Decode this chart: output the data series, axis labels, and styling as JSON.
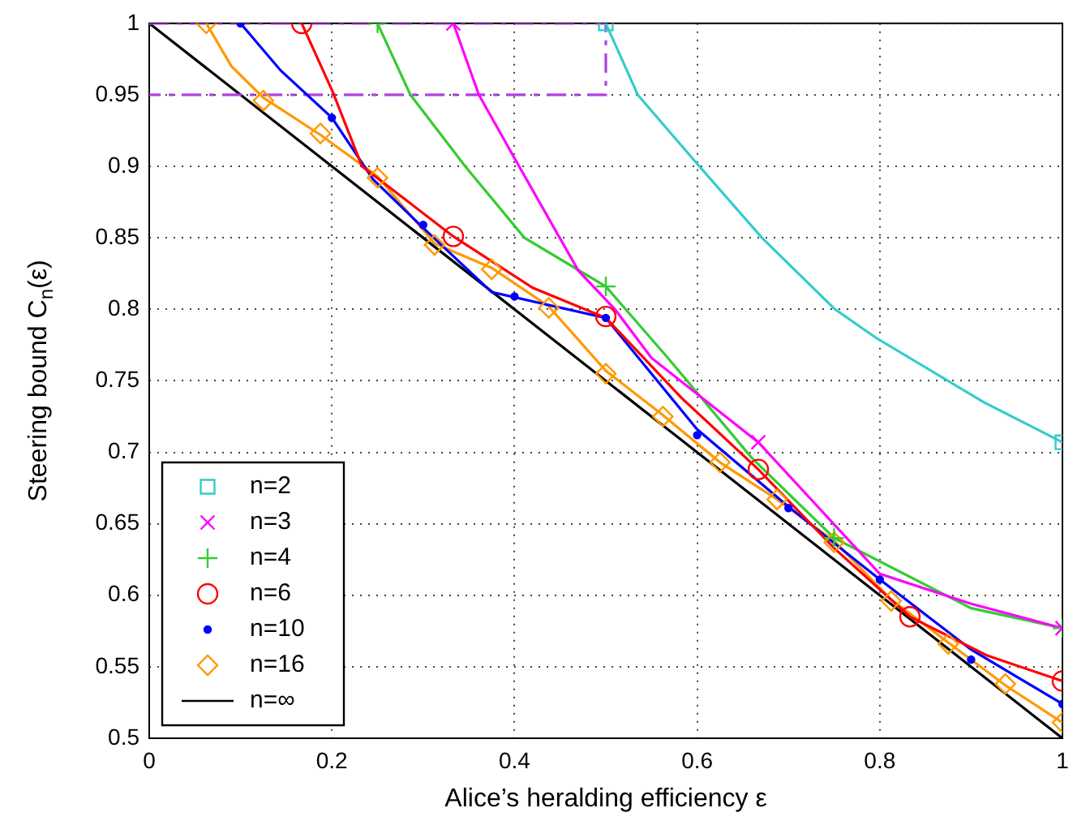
{
  "chart_data": {
    "type": "line",
    "xlabel": "Alice’s heralding efficiency ε",
    "ylabel": "Steering bound C$_{n}$(ε)",
    "xlim": [
      0,
      1
    ],
    "ylim": [
      0.5,
      1
    ],
    "xticks": [
      0,
      0.2,
      0.4,
      0.6,
      0.8,
      1
    ],
    "yticks": [
      0.5,
      0.55,
      0.6,
      0.65,
      0.7,
      0.75,
      0.8,
      0.85,
      0.9,
      0.95,
      1
    ],
    "grid": true,
    "legend": "bottom left",
    "line_style": "solid",
    "series": [
      {
        "type": "line",
        "color": "#33cccc",
        "marker": "none",
        "x": [
          0.5,
          0.535,
          0.597,
          0.671,
          0.751,
          0.796,
          0.914,
          1
        ],
        "values": [
          1,
          0.95,
          0.904,
          0.85,
          0.8,
          0.78,
          0.735,
          0.707
        ]
      },
      {
        "type": "line",
        "color": "#ff00ff",
        "marker": "none",
        "x": [
          0.333,
          0.361,
          0.405,
          0.47,
          0.51,
          0.55,
          0.667,
          0.8,
          0.9,
          1
        ],
        "values": [
          1,
          0.95,
          0.9,
          0.827,
          0.8,
          0.766,
          0.707,
          0.615,
          0.594,
          0.577
        ]
      },
      {
        "type": "line",
        "color": "#33cc33",
        "marker": "none",
        "x": [
          0.25,
          0.286,
          0.346,
          0.411,
          0.5,
          0.568,
          0.66,
          0.75,
          0.9,
          1
        ],
        "values": [
          1,
          0.95,
          0.9,
          0.85,
          0.816,
          0.766,
          0.696,
          0.64,
          0.591,
          0.577
        ]
      },
      {
        "type": "line",
        "color": "#ff0000",
        "marker": "none",
        "x": [
          0.167,
          0.201,
          0.233,
          0.333,
          0.42,
          0.5,
          0.583,
          0.667,
          0.75,
          0.833,
          0.917,
          1
        ],
        "values": [
          1,
          0.952,
          0.9,
          0.851,
          0.815,
          0.794,
          0.738,
          0.688,
          0.633,
          0.585,
          0.558,
          0.54
        ]
      },
      {
        "type": "line",
        "color": "#0000ff",
        "marker": "none",
        "x": [
          0.1,
          0.144,
          0.2,
          0.245,
          0.3,
          0.375,
          0.5,
          0.6,
          0.7,
          0.8,
          0.9,
          1
        ],
        "values": [
          1,
          0.967,
          0.934,
          0.891,
          0.857,
          0.812,
          0.794,
          0.716,
          0.662,
          0.611,
          0.562,
          0.524
        ]
      },
      {
        "type": "line",
        "color": "#ff9900",
        "marker": "none",
        "x": [
          0.0625,
          0.09,
          0.125,
          0.1875,
          0.25,
          0.3125,
          0.375,
          0.4375,
          0.5,
          0.5625,
          0.625,
          0.6875,
          0.75,
          0.8125,
          0.875,
          0.9375,
          1
        ],
        "values": [
          1,
          0.97,
          0.948,
          0.922,
          0.893,
          0.846,
          0.829,
          0.802,
          0.757,
          0.726,
          0.693,
          0.667,
          0.638,
          0.597,
          0.567,
          0.537,
          0.511
        ]
      },
      {
        "type": "line",
        "color": "#b040e0",
        "marker": "none",
        "line_style": "dashed",
        "x": [
          0,
          0.5,
          0.5,
          0
        ],
        "values": [
          1,
          1,
          0.95,
          0.95
        ]
      },
      {
        "type": "scatter",
        "name": "n=2",
        "color": "#33cccc",
        "marker": "square",
        "x": [
          0.5,
          1
        ],
        "values": [
          1,
          0.707
        ]
      },
      {
        "type": "scatter",
        "name": "n=3",
        "color": "#ff00ff",
        "marker": "cross",
        "x": [
          0.333,
          0.667,
          1
        ],
        "values": [
          1,
          0.707,
          0.577
        ]
      },
      {
        "type": "scatter",
        "name": "n=4",
        "color": "#33cc33",
        "marker": "plus",
        "x": [
          0.25,
          0.5,
          0.75,
          1
        ],
        "values": [
          1,
          0.816,
          0.64,
          0.577
        ]
      },
      {
        "type": "scatter",
        "name": "n=6",
        "color": "#ff0000",
        "marker": "circle",
        "x": [
          0.167,
          0.333,
          0.5,
          0.667,
          0.833,
          1
        ],
        "values": [
          1,
          0.851,
          0.795,
          0.688,
          0.585,
          0.54
        ]
      },
      {
        "type": "scatter",
        "name": "n=10",
        "color": "#0000ff",
        "marker": "dot",
        "x": [
          0.1,
          0.2,
          0.3,
          0.4,
          0.5,
          0.6,
          0.7,
          0.8,
          0.9,
          1
        ],
        "values": [
          1,
          0.934,
          0.859,
          0.809,
          0.794,
          0.712,
          0.661,
          0.611,
          0.555,
          0.524
        ]
      },
      {
        "type": "scatter",
        "name": "n=16",
        "color": "#ff9900",
        "marker": "diamond",
        "x": [
          0.0625,
          0.125,
          0.1875,
          0.25,
          0.3125,
          0.375,
          0.4375,
          0.5,
          0.5625,
          0.625,
          0.6875,
          0.75,
          0.8125,
          0.875,
          0.9375,
          1
        ],
        "values": [
          1,
          0.946,
          0.923,
          0.892,
          0.845,
          0.828,
          0.801,
          0.755,
          0.725,
          0.693,
          0.667,
          0.637,
          0.596,
          0.566,
          0.538,
          0.511
        ]
      },
      {
        "type": "line",
        "name": "n=∞",
        "color": "#000000",
        "marker": "none",
        "x": [
          0,
          1
        ],
        "values": [
          1,
          0.5
        ]
      }
    ]
  }
}
